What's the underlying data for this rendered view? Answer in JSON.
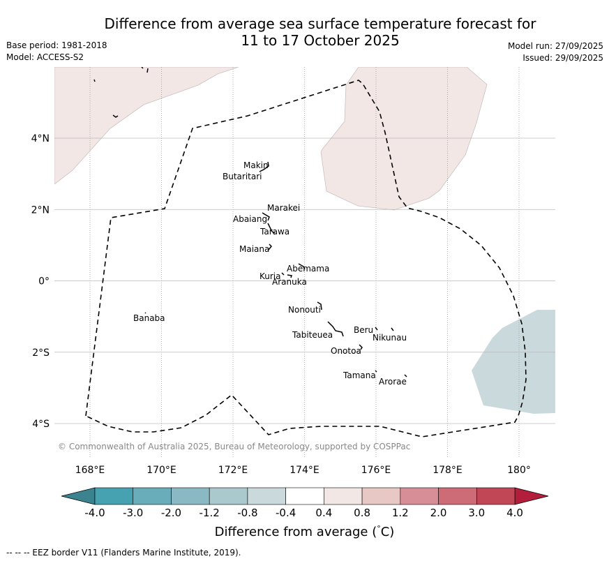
{
  "title": {
    "line1": "Difference from average sea surface temperature forecast for",
    "line2": "11 to 17 October 2025"
  },
  "meta_left": {
    "base_period": "Base period: 1981-2018",
    "model": "Model: ACCESS-S2"
  },
  "meta_right": {
    "model_run": "Model run: 27/09/2025",
    "issued": "Issued: 29/09/2025"
  },
  "map": {
    "lon_range": [
      167,
      181
    ],
    "lat_range": [
      -5,
      6
    ],
    "x_ticks": [
      {
        "value": 168,
        "label": "168°E"
      },
      {
        "value": 170,
        "label": "170°E"
      },
      {
        "value": 172,
        "label": "172°E"
      },
      {
        "value": 174,
        "label": "174°E"
      },
      {
        "value": 176,
        "label": "176°E"
      },
      {
        "value": 178,
        "label": "178°E"
      },
      {
        "value": 180,
        "label": "180°"
      }
    ],
    "y_ticks": [
      {
        "value": 4,
        "label": "4°N"
      },
      {
        "value": 2,
        "label": "2°N"
      },
      {
        "value": 0,
        "label": "0°"
      },
      {
        "value": -2,
        "label": "2°S"
      },
      {
        "value": -4,
        "label": "4°S"
      }
    ],
    "islands": [
      {
        "name": "Makin",
        "lon": 172.95,
        "lat": 3.3
      },
      {
        "name": "Butaritari",
        "lon": 172.5,
        "lat": 2.95
      },
      {
        "name": "Marakei",
        "lon": 173.35,
        "lat": 2.0
      },
      {
        "name": "Abaiang",
        "lon": 172.9,
        "lat": 1.75
      },
      {
        "name": "Tarawa",
        "lon": 173.05,
        "lat": 1.4
      },
      {
        "name": "Maiana",
        "lon": 173.0,
        "lat": 0.95
      },
      {
        "name": "Abemama",
        "lon": 173.85,
        "lat": 0.4
      },
      {
        "name": "Kuria",
        "lon": 173.45,
        "lat": 0.2
      },
      {
        "name": "Aranuka",
        "lon": 173.6,
        "lat": 0.15
      },
      {
        "name": "Nonouti",
        "lon": 174.45,
        "lat": -0.65
      },
      {
        "name": "Tabiteuea",
        "lon": 174.9,
        "lat": -1.3
      },
      {
        "name": "Beru",
        "lon": 176.0,
        "lat": -1.35
      },
      {
        "name": "Nikunau",
        "lon": 176.45,
        "lat": -1.35
      },
      {
        "name": "Onotoa",
        "lon": 175.55,
        "lat": -1.85
      },
      {
        "name": "Tamana",
        "lon": 176.0,
        "lat": -2.5
      },
      {
        "name": "Arorae",
        "lon": 176.8,
        "lat": -2.65
      },
      {
        "name": "Banaba",
        "lon": 169.5,
        "lat": -0.85
      }
    ],
    "anomaly_regions": [
      {
        "name": "warm-region-northwest",
        "category": "0.4 to 0.8",
        "color": "#f3e7e6"
      },
      {
        "name": "warm-region-north",
        "category": "0.4 to 0.8",
        "color": "#f3e7e6"
      },
      {
        "name": "cool-region-southeast",
        "category": "-0.8 to -0.4",
        "color": "#c9d9dc"
      }
    ],
    "copyright": "© Commonwealth of Australia 2025, Bureau of Meteorology, supported by COSPPac"
  },
  "colorbar": {
    "title": "Difference from average (°C)",
    "title_parts": {
      "pre": "Difference from average (",
      "deg": "°",
      "post": "C)"
    },
    "levels": [
      "-4.0",
      "-3.0",
      "-2.0",
      "-1.2",
      "-0.8",
      "-0.4",
      "0.4",
      "0.8",
      "1.2",
      "2.0",
      "3.0",
      "4.0"
    ],
    "under_color": "#3c8390",
    "over_color": "#b21e3c",
    "colors": [
      "#46a1b0",
      "#6aadba",
      "#8ab9c4",
      "#a9c9cd",
      "#c9d9dc",
      "#ffffff",
      "#f3e7e6",
      "#e8c8c4",
      "#d88e96",
      "#cd6c77",
      "#c14757"
    ]
  },
  "footer": {
    "eez_note": "--  --  -- EEZ border V11 (Flanders Marine Institute, 2019)."
  }
}
